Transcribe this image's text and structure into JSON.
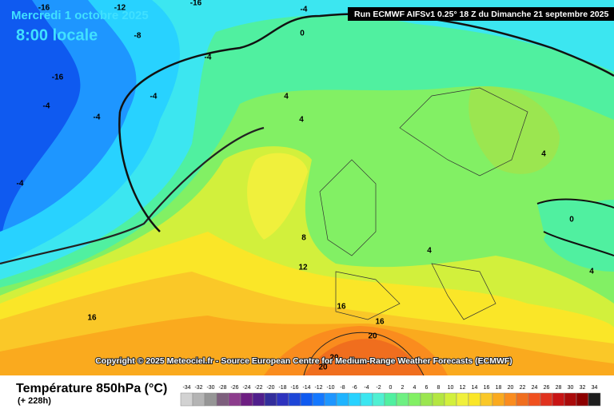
{
  "header": {
    "date": "Mercredi 1 octobre 2025",
    "time": "8:00 locale",
    "run": "Run ECMWF AIFSv1 0.25° 18 Z du Dimanche 21 septembre 2025"
  },
  "map": {
    "contour_labels": [
      -16,
      -12,
      -16,
      -4,
      -8,
      0,
      -4,
      -16,
      -4,
      -4,
      -4,
      -4,
      4,
      4,
      4,
      0,
      8,
      12,
      4,
      4,
      16,
      16,
      16,
      20,
      20,
      20
    ],
    "copyright": "Copyright © 2025 Meteociel.fr - Source European Centre for Medium-Range Weather Forecasts (ECMWF)"
  },
  "footer": {
    "title": "Température 850hPa (°C)",
    "lead": "(+ 228h)"
  },
  "legend": {
    "values": [
      -34,
      -32,
      -30,
      -28,
      -26,
      -24,
      -22,
      -20,
      -18,
      -16,
      -14,
      -12,
      -10,
      -8,
      -6,
      -4,
      -2,
      0,
      2,
      4,
      6,
      8,
      10,
      12,
      14,
      16,
      18,
      20,
      22,
      24,
      26,
      28,
      30,
      32,
      34
    ],
    "colors": [
      "#d2d2d2",
      "#b4b4b4",
      "#969696",
      "#7d5f7d",
      "#8c3c8c",
      "#6e1e82",
      "#501e8c",
      "#322d9b",
      "#2d32be",
      "#1e46d7",
      "#0f5af0",
      "#1478ff",
      "#1e96ff",
      "#1eb4ff",
      "#28d2ff",
      "#3ce6f0",
      "#50f0d2",
      "#50f0a0",
      "#6ef082",
      "#82f064",
      "#9be650",
      "#b4e641",
      "#d2f03c",
      "#f0f03c",
      "#fae628",
      "#fac828",
      "#faaa1e",
      "#fa8c1e",
      "#f06e1e",
      "#f0501e",
      "#e0321e",
      "#c81414",
      "#aa0a0a",
      "#8c0000",
      "#1e1e1e"
    ]
  }
}
